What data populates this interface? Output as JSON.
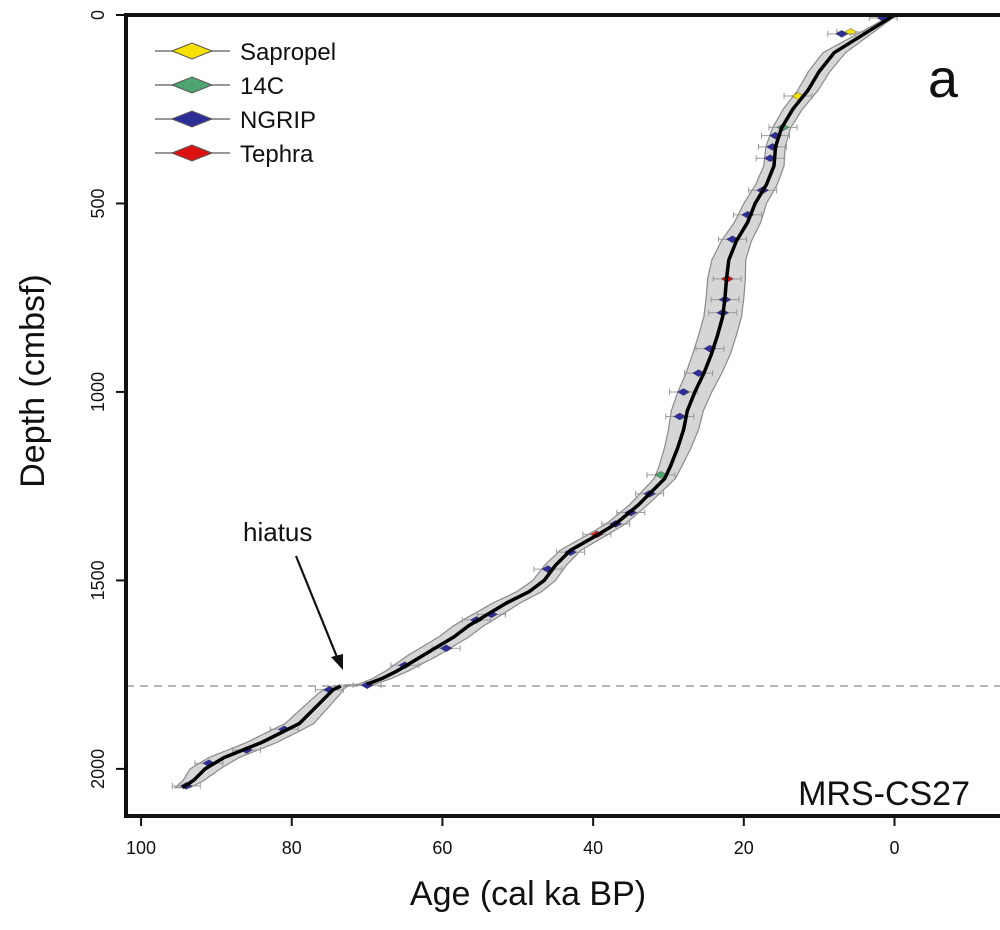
{
  "chart_data": {
    "type": "line",
    "panel_label": "a",
    "core_label": "MRS-CS27",
    "xlabel": "Age (cal ka BP)",
    "ylabel": "Depth (cmbsf)",
    "xlim": [
      102,
      -14
    ],
    "ylim": [
      2125,
      0
    ],
    "x_ticks": [
      100,
      80,
      60,
      40,
      20,
      0
    ],
    "y_ticks": [
      0,
      500,
      1000,
      1500,
      2000
    ],
    "hiatus_depth": 1780,
    "annotation": "hiatus",
    "legend": {
      "placement": "top-left",
      "entries": [
        {
          "label": "Sapropel",
          "color": "#f5e000"
        },
        {
          "label": "14C",
          "color": "#4fa36e"
        },
        {
          "label": "NGRIP",
          "color": "#2e2e9a"
        },
        {
          "label": "Tephra",
          "color": "#dd1111"
        }
      ]
    },
    "age_model": [
      [
        0,
        0.0
      ],
      [
        50,
        4.0
      ],
      [
        100,
        8.0
      ],
      [
        150,
        10.0
      ],
      [
        200,
        11.5
      ],
      [
        250,
        13.5
      ],
      [
        300,
        15.0
      ],
      [
        350,
        15.8
      ],
      [
        400,
        16.0
      ],
      [
        450,
        17.0
      ],
      [
        500,
        18.5
      ],
      [
        550,
        19.5
      ],
      [
        600,
        21.0
      ],
      [
        650,
        22.0
      ],
      [
        700,
        22.3
      ],
      [
        750,
        22.5
      ],
      [
        800,
        22.8
      ],
      [
        850,
        23.5
      ],
      [
        900,
        24.3
      ],
      [
        950,
        25.3
      ],
      [
        1000,
        26.5
      ],
      [
        1050,
        27.5
      ],
      [
        1100,
        28.0
      ],
      [
        1150,
        28.8
      ],
      [
        1200,
        29.8
      ],
      [
        1230,
        30.5
      ],
      [
        1270,
        32.5
      ],
      [
        1300,
        34.0
      ],
      [
        1350,
        37.0
      ],
      [
        1380,
        39.5
      ],
      [
        1420,
        43.0
      ],
      [
        1460,
        45.0
      ],
      [
        1500,
        46.5
      ],
      [
        1530,
        48.5
      ],
      [
        1560,
        51.5
      ],
      [
        1590,
        54.0
      ],
      [
        1620,
        56.5
      ],
      [
        1650,
        58.5
      ],
      [
        1680,
        61.0
      ],
      [
        1710,
        63.5
      ],
      [
        1740,
        66.0
      ],
      [
        1760,
        68.0
      ],
      [
        1775,
        70.0
      ],
      [
        1780,
        73.5
      ],
      [
        1790,
        74.5
      ],
      [
        1830,
        76.5
      ],
      [
        1880,
        79.0
      ],
      [
        1930,
        84.0
      ],
      [
        1970,
        89.0
      ],
      [
        2000,
        91.5
      ],
      [
        2030,
        93.0
      ],
      [
        2050,
        94.5
      ]
    ],
    "uncertainty_halfwidth": [
      [
        0,
        0.3
      ],
      [
        100,
        1.5
      ],
      [
        300,
        1.2
      ],
      [
        500,
        1.5
      ],
      [
        700,
        2.5
      ],
      [
        900,
        2.5
      ],
      [
        1100,
        2.0
      ],
      [
        1200,
        1.5
      ],
      [
        1300,
        1.2
      ],
      [
        1500,
        1.5
      ],
      [
        1600,
        2.0
      ],
      [
        1700,
        2.0
      ],
      [
        1780,
        1.0
      ],
      [
        1800,
        1.5
      ],
      [
        1900,
        2.0
      ],
      [
        2000,
        2.0
      ],
      [
        2050,
        1.0
      ]
    ],
    "tie_points": [
      {
        "type": "NGRIP",
        "age": 1.5,
        "depth": 8
      },
      {
        "type": "Sapropel",
        "age": 5.8,
        "depth": 45
      },
      {
        "type": "NGRIP",
        "age": 7.0,
        "depth": 50
      },
      {
        "type": "Sapropel",
        "age": 12.8,
        "depth": 215
      },
      {
        "type": "14C",
        "age": 14.8,
        "depth": 298
      },
      {
        "type": "NGRIP",
        "age": 15.8,
        "depth": 320
      },
      {
        "type": "NGRIP",
        "age": 16.2,
        "depth": 350
      },
      {
        "type": "NGRIP",
        "age": 16.5,
        "depth": 380
      },
      {
        "type": "NGRIP",
        "age": 17.5,
        "depth": 465
      },
      {
        "type": "NGRIP",
        "age": 19.5,
        "depth": 530
      },
      {
        "type": "NGRIP",
        "age": 21.5,
        "depth": 595
      },
      {
        "type": "Tephra",
        "age": 22.2,
        "depth": 700
      },
      {
        "type": "NGRIP",
        "age": 22.5,
        "depth": 755
      },
      {
        "type": "NGRIP",
        "age": 22.8,
        "depth": 790
      },
      {
        "type": "NGRIP",
        "age": 24.5,
        "depth": 885
      },
      {
        "type": "NGRIP",
        "age": 26.0,
        "depth": 950
      },
      {
        "type": "NGRIP",
        "age": 28.0,
        "depth": 1000
      },
      {
        "type": "NGRIP",
        "age": 28.5,
        "depth": 1065
      },
      {
        "type": "14C",
        "age": 31.0,
        "depth": 1220
      },
      {
        "type": "NGRIP",
        "age": 32.5,
        "depth": 1270
      },
      {
        "type": "NGRIP",
        "age": 35.0,
        "depth": 1320
      },
      {
        "type": "Tephra",
        "age": 39.5,
        "depth": 1378
      },
      {
        "type": "NGRIP",
        "age": 37.0,
        "depth": 1350
      },
      {
        "type": "NGRIP",
        "age": 43.0,
        "depth": 1425
      },
      {
        "type": "NGRIP",
        "age": 46.0,
        "depth": 1470
      },
      {
        "type": "NGRIP",
        "age": 53.5,
        "depth": 1590
      },
      {
        "type": "NGRIP",
        "age": 55.5,
        "depth": 1605
      },
      {
        "type": "NGRIP",
        "age": 59.5,
        "depth": 1680
      },
      {
        "type": "NGRIP",
        "age": 65.0,
        "depth": 1725
      },
      {
        "type": "NGRIP",
        "age": 70.0,
        "depth": 1778
      },
      {
        "type": "NGRIP",
        "age": 75.0,
        "depth": 1790
      },
      {
        "type": "NGRIP",
        "age": 81.0,
        "depth": 1895
      },
      {
        "type": "NGRIP",
        "age": 86.0,
        "depth": 1950
      },
      {
        "type": "NGRIP",
        "age": 91.0,
        "depth": 1985
      },
      {
        "type": "NGRIP",
        "age": 94.0,
        "depth": 2045
      }
    ]
  }
}
